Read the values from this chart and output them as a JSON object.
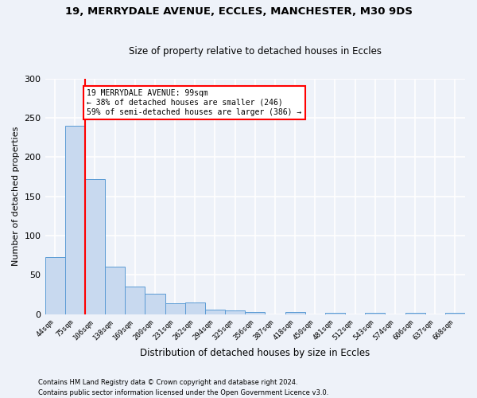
{
  "title": "19, MERRYDALE AVENUE, ECCLES, MANCHESTER, M30 9DS",
  "subtitle": "Size of property relative to detached houses in Eccles",
  "xlabel": "Distribution of detached houses by size in Eccles",
  "ylabel": "Number of detached properties",
  "bar_labels": [
    "44sqm",
    "75sqm",
    "106sqm",
    "138sqm",
    "169sqm",
    "200sqm",
    "231sqm",
    "262sqm",
    "294sqm",
    "325sqm",
    "356sqm",
    "387sqm",
    "418sqm",
    "450sqm",
    "481sqm",
    "512sqm",
    "543sqm",
    "574sqm",
    "606sqm",
    "637sqm",
    "668sqm"
  ],
  "bar_values": [
    73,
    240,
    172,
    60,
    35,
    26,
    14,
    15,
    6,
    5,
    3,
    0,
    3,
    0,
    2,
    0,
    2,
    0,
    2,
    0,
    2
  ],
  "bar_color": "#c8d9ef",
  "bar_edge_color": "#5b9bd5",
  "vline_color": "red",
  "annotation_text": "19 MERRYDALE AVENUE: 99sqm\n← 38% of detached houses are smaller (246)\n59% of semi-detached houses are larger (386) →",
  "annotation_box_color": "white",
  "annotation_box_edge": "red",
  "ylim": [
    0,
    300
  ],
  "yticks": [
    0,
    50,
    100,
    150,
    200,
    250,
    300
  ],
  "footer1": "Contains HM Land Registry data © Crown copyright and database right 2024.",
  "footer2": "Contains public sector information licensed under the Open Government Licence v3.0.",
  "background_color": "#eef2f9",
  "grid_color": "white"
}
